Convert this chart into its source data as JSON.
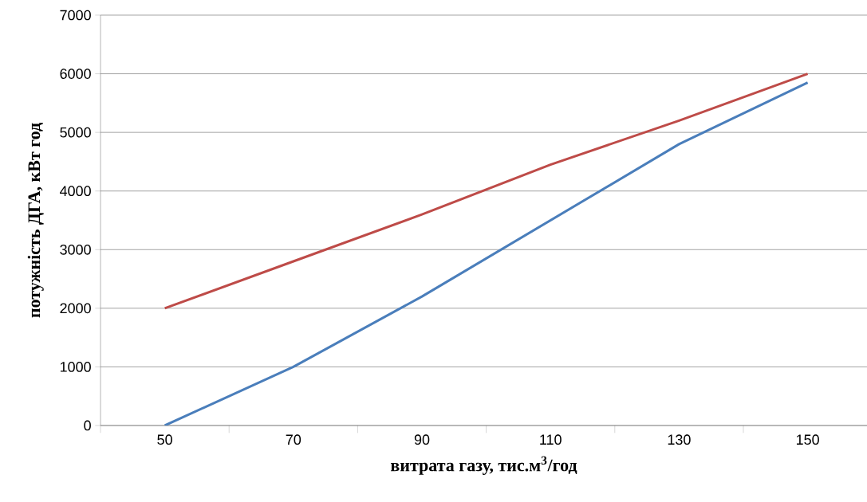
{
  "chart_data": {
    "type": "line",
    "xlabel": "витрата газу, тис.м$^{3}$/год",
    "ylabel": "потужність ДГА, кВт год",
    "categories": [
      "50",
      "70",
      "90",
      "110",
      "130",
      "150"
    ],
    "series": [
      {
        "color": "#4a7ebb",
        "values": [
          0,
          1000,
          2200,
          3500,
          4800,
          5850
        ]
      },
      {
        "color": "#be4b48",
        "values": [
          2000,
          2800,
          3600,
          4450,
          5200,
          6000
        ]
      }
    ],
    "ylim": [
      0,
      7000
    ],
    "yticks": [
      0,
      1000,
      2000,
      3000,
      4000,
      5000,
      6000,
      7000
    ],
    "grid": "y",
    "marker": "none",
    "line_style": "solid"
  }
}
